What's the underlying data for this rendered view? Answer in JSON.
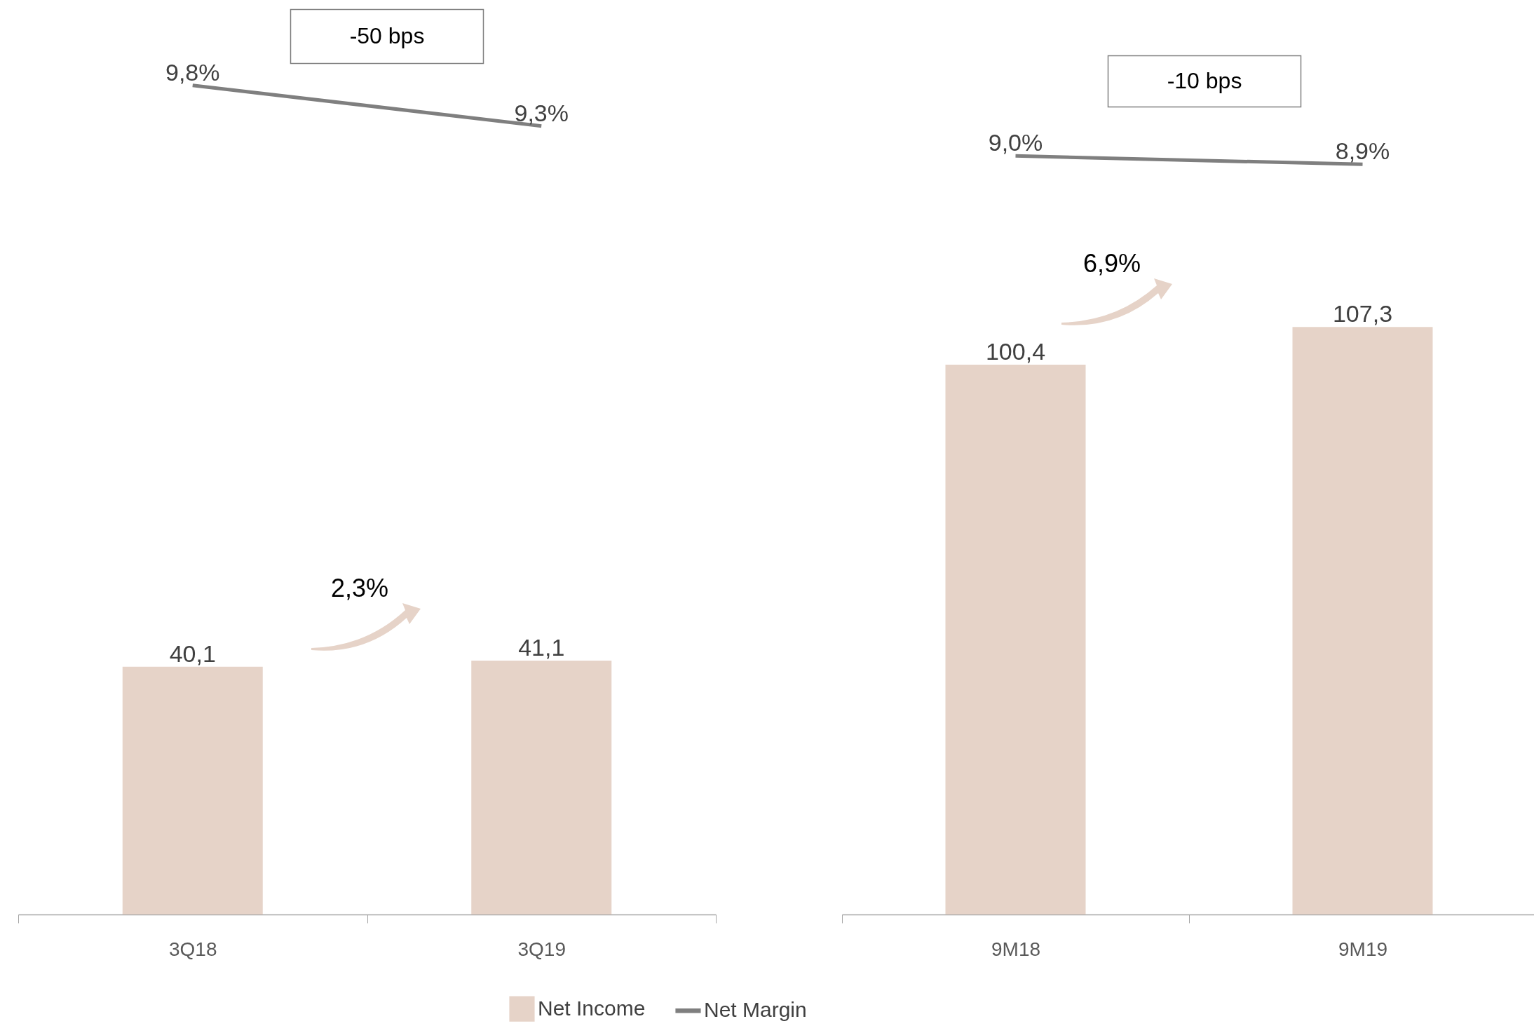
{
  "chart_data": [
    {
      "type": "bar",
      "categories": [
        "3Q18",
        "3Q19"
      ],
      "series": [
        {
          "name": "Net Income",
          "type": "bar",
          "color": "#e6d3c8",
          "values": [
            40.1,
            41.1
          ],
          "value_labels": [
            "40,1",
            "41,1"
          ]
        },
        {
          "name": "Net Margin",
          "type": "line",
          "axis": "y2",
          "color": "#7f7f7f",
          "values": [
            9.8,
            9.3
          ],
          "value_labels": [
            "9,8%",
            "9,3%"
          ]
        }
      ],
      "ylim": [
        0,
        148
      ],
      "y2lim": [
        -0.4,
        10.85
      ],
      "annotations": [
        "-50 bps",
        "2,3%"
      ],
      "legend": "bottom",
      "tick_labels": "x",
      "marker": "none"
    },
    {
      "type": "bar",
      "categories": [
        "9M18",
        "9M19"
      ],
      "series": [
        {
          "type": "bar",
          "color": "#e6d3c8",
          "values": [
            100.4,
            107.3
          ],
          "value_labels": [
            "100,4",
            "107,3"
          ]
        },
        {
          "type": "line",
          "axis": "y2",
          "color": "#7f7f7f",
          "values": [
            9.0,
            8.9
          ],
          "value_labels": [
            "9,0%",
            "8,9%"
          ]
        }
      ],
      "ylim": [
        0,
        167
      ],
      "y2lim": [
        0,
        10.85
      ],
      "annotations": [
        "-10 bps",
        "6,9%"
      ],
      "tick_labels": "x",
      "marker": "none"
    }
  ]
}
